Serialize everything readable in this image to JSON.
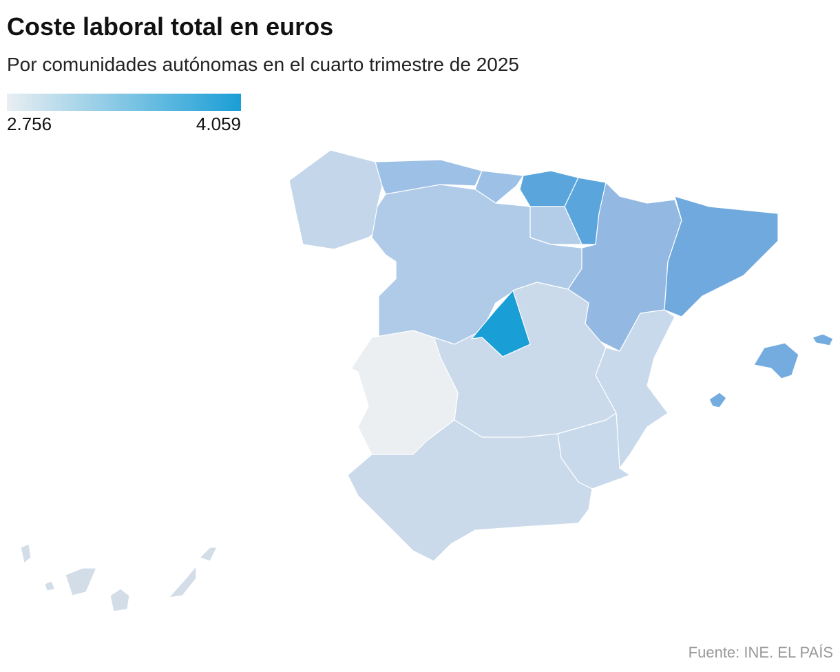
{
  "chart_data": {
    "type": "choropleth",
    "title": "Coste laboral total en euros",
    "subtitle": "Por comunidades autónomas en el cuarto trimestre de 2025",
    "scale": {
      "colors": [
        "#e9eef2",
        "#1a9ed6"
      ],
      "ticks": [
        {
          "value": 2756,
          "label": "2.756"
        },
        {
          "value": 4059,
          "label": "4.059"
        }
      ]
    },
    "source": "Fuente: INE. EL PAÍS"
  }
}
